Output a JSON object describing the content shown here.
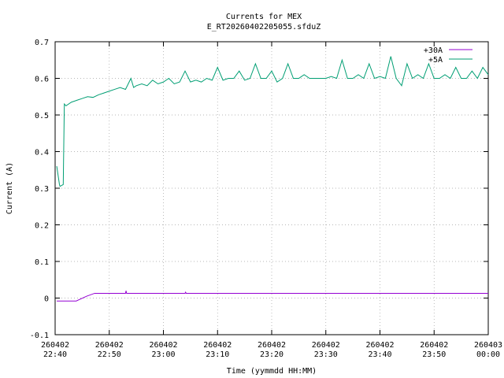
{
  "chart_data": {
    "type": "line",
    "title": "Currents for MEX",
    "subtitle": "E_RT20260402205055.sfduZ",
    "x_label": "Time (yymmdd HH:MM)",
    "y_label": "Current (A)",
    "xlim": [
      0,
      80
    ],
    "ylim": [
      -0.1,
      0.7
    ],
    "xticks": [
      {
        "value": 0,
        "label": "260402\n22:40"
      },
      {
        "value": 10,
        "label": "260402\n22:50"
      },
      {
        "value": 20,
        "label": "260402\n23:00"
      },
      {
        "value": 30,
        "label": "260402\n23:10"
      },
      {
        "value": 40,
        "label": "260402\n23:20"
      },
      {
        "value": 50,
        "label": "260402\n23:30"
      },
      {
        "value": 60,
        "label": "260402\n23:40"
      },
      {
        "value": 70,
        "label": "260402\n23:50"
      },
      {
        "value": 80,
        "label": "260403\n00:00"
      }
    ],
    "yticks": [
      -0.1,
      0,
      0.1,
      0.2,
      0.3,
      0.4,
      0.5,
      0.6,
      0.7
    ],
    "grid": true,
    "legend": "top-right",
    "series": [
      {
        "name": "+30A",
        "color": "#9400d3",
        "x": [
          0.3,
          3.9,
          5.8,
          7.3,
          13,
          13.1,
          13.2,
          24,
          24.1,
          24.2,
          80
        ],
        "values": [
          -0.008,
          -0.008,
          0.005,
          0.013,
          0.013,
          0.02,
          0.013,
          0.013,
          0.016,
          0.013,
          0.013
        ]
      },
      {
        "name": "+5A",
        "color": "#009e73",
        "x": [
          0.3,
          0.8,
          0.9,
          1.5,
          1.7,
          2,
          3,
          4,
          5,
          6,
          7,
          8,
          9,
          10,
          11,
          12,
          13,
          14,
          14.5,
          15,
          16,
          17,
          18,
          19,
          20,
          21,
          22,
          23,
          24,
          25,
          26,
          27,
          28,
          29,
          30,
          31,
          32,
          33,
          34,
          35,
          36,
          37,
          38,
          39,
          40,
          41,
          42,
          43,
          44,
          45,
          46,
          47,
          48,
          49,
          50,
          51,
          52,
          53,
          54,
          55,
          56,
          57,
          58,
          59,
          60,
          61,
          62,
          63,
          64,
          65,
          66,
          67,
          68,
          69,
          70,
          71,
          72,
          73,
          74,
          75,
          76,
          77,
          78,
          79,
          80
        ],
        "values": [
          0.36,
          0.31,
          0.305,
          0.31,
          0.53,
          0.525,
          0.535,
          0.54,
          0.545,
          0.55,
          0.548,
          0.555,
          0.56,
          0.565,
          0.57,
          0.575,
          0.57,
          0.6,
          0.575,
          0.58,
          0.585,
          0.58,
          0.595,
          0.585,
          0.59,
          0.6,
          0.585,
          0.59,
          0.62,
          0.59,
          0.595,
          0.59,
          0.6,
          0.595,
          0.63,
          0.595,
          0.6,
          0.6,
          0.62,
          0.595,
          0.6,
          0.64,
          0.6,
          0.6,
          0.62,
          0.59,
          0.6,
          0.64,
          0.6,
          0.6,
          0.61,
          0.6,
          0.6,
          0.6,
          0.6,
          0.605,
          0.6,
          0.65,
          0.6,
          0.6,
          0.61,
          0.6,
          0.64,
          0.6,
          0.605,
          0.6,
          0.66,
          0.6,
          0.58,
          0.64,
          0.6,
          0.61,
          0.6,
          0.64,
          0.6,
          0.6,
          0.61,
          0.6,
          0.63,
          0.6,
          0.6,
          0.62,
          0.6,
          0.63,
          0.61
        ]
      }
    ]
  }
}
